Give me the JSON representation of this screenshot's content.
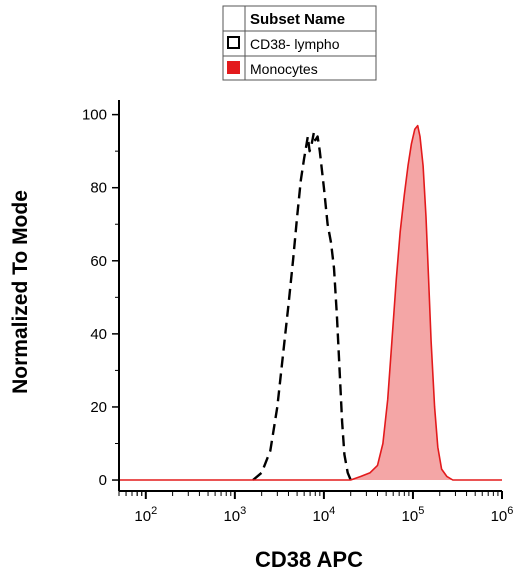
{
  "chart_data": {
    "type": "area",
    "title": "",
    "xlabel": "CD38 APC",
    "ylabel": "Normalized To Mode",
    "xscale": "log",
    "xlim": [
      50,
      1000000
    ],
    "ylim": [
      -3,
      104
    ],
    "x_ticks": [
      {
        "base": "10",
        "exp": "2",
        "value": 100
      },
      {
        "base": "10",
        "exp": "3",
        "value": 1000
      },
      {
        "base": "10",
        "exp": "4",
        "value": 10000
      },
      {
        "base": "10",
        "exp": "5",
        "value": 100000
      },
      {
        "base": "10",
        "exp": "6",
        "value": 1000000
      }
    ],
    "y_ticks": [
      {
        "label": "0",
        "value": 0
      },
      {
        "label": "20",
        "value": 20
      },
      {
        "label": "40",
        "value": 40
      },
      {
        "label": "60",
        "value": 60
      },
      {
        "label": "80",
        "value": 80
      },
      {
        "label": "100",
        "value": 100
      }
    ],
    "grid": false,
    "legend": {
      "placement": "top-center",
      "header": "Subset Name",
      "entries": [
        "CD38- lympho",
        "Monocytes"
      ]
    },
    "series": [
      {
        "name": "CD38- lympho",
        "style": "dashed",
        "color": "#000000",
        "fill": "none",
        "points": [
          [
            1600,
            0
          ],
          [
            2000,
            2
          ],
          [
            2500,
            8
          ],
          [
            3000,
            20
          ],
          [
            3500,
            35
          ],
          [
            4000,
            48
          ],
          [
            4500,
            60
          ],
          [
            5000,
            72
          ],
          [
            5500,
            82
          ],
          [
            6000,
            88
          ],
          [
            6300,
            91
          ],
          [
            6600,
            94
          ],
          [
            6900,
            90
          ],
          [
            7300,
            92
          ],
          [
            7700,
            95
          ],
          [
            8000,
            93
          ],
          [
            8500,
            94
          ],
          [
            9000,
            90
          ],
          [
            10000,
            80
          ],
          [
            11000,
            70
          ],
          [
            12000,
            65
          ],
          [
            13000,
            58
          ],
          [
            14000,
            45
          ],
          [
            15000,
            30
          ],
          [
            16000,
            16
          ],
          [
            17000,
            7
          ],
          [
            18500,
            2
          ],
          [
            20000,
            0
          ]
        ]
      },
      {
        "name": "Monocytes",
        "style": "solid",
        "color": "#e31a1c",
        "fill": "#f4a6a6",
        "points": [
          [
            50,
            0
          ],
          [
            20000,
            0
          ],
          [
            26000,
            1
          ],
          [
            33000,
            2
          ],
          [
            40000,
            4
          ],
          [
            46000,
            10
          ],
          [
            52000,
            22
          ],
          [
            58000,
            38
          ],
          [
            65000,
            55
          ],
          [
            72000,
            68
          ],
          [
            80000,
            78
          ],
          [
            88000,
            86
          ],
          [
            96000,
            92
          ],
          [
            105000,
            96
          ],
          [
            113000,
            97
          ],
          [
            120000,
            94
          ],
          [
            130000,
            86
          ],
          [
            140000,
            72
          ],
          [
            150000,
            55
          ],
          [
            160000,
            38
          ],
          [
            175000,
            20
          ],
          [
            190000,
            9
          ],
          [
            210000,
            3
          ],
          [
            240000,
            1
          ],
          [
            280000,
            0
          ],
          [
            1000000,
            0
          ]
        ]
      }
    ]
  }
}
